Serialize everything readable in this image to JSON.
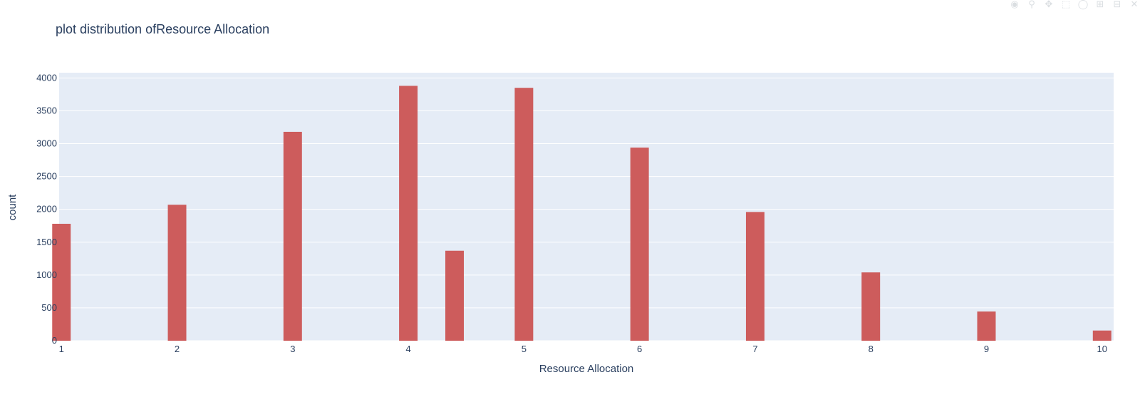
{
  "chart_data": {
    "type": "bar",
    "title": "plot distribution ofResource Allocation",
    "xlabel": "Resource Allocation",
    "ylabel": "count",
    "x": [
      1,
      2,
      3,
      4,
      4.4,
      5,
      6,
      7,
      8,
      9,
      10
    ],
    "values": [
      1780,
      2070,
      3180,
      3880,
      1370,
      3850,
      2940,
      1960,
      1040,
      445,
      155
    ],
    "bar_width": 0.16,
    "xlim": [
      0.98,
      10.1
    ],
    "ylim": [
      0,
      4080
    ],
    "x_ticks": [
      "1",
      "2",
      "3",
      "4",
      "5",
      "6",
      "7",
      "8",
      "9",
      "10"
    ],
    "y_ticks": [
      "0",
      "500",
      "1000",
      "1500",
      "2000",
      "2500",
      "3000",
      "3500",
      "4000"
    ],
    "grid": true,
    "bar_color": "#cd5c5c",
    "plot_bg": "#e5ecf6",
    "grid_color": "#ffffff",
    "text_color": "#2a3f5f"
  },
  "modebar": {
    "icons": [
      "camera-icon",
      "zoom-icon",
      "pan-icon",
      "box-select-icon",
      "lasso-icon",
      "zoom-in-icon",
      "zoom-out-icon",
      "autoscale-icon",
      "reset-icon"
    ]
  }
}
